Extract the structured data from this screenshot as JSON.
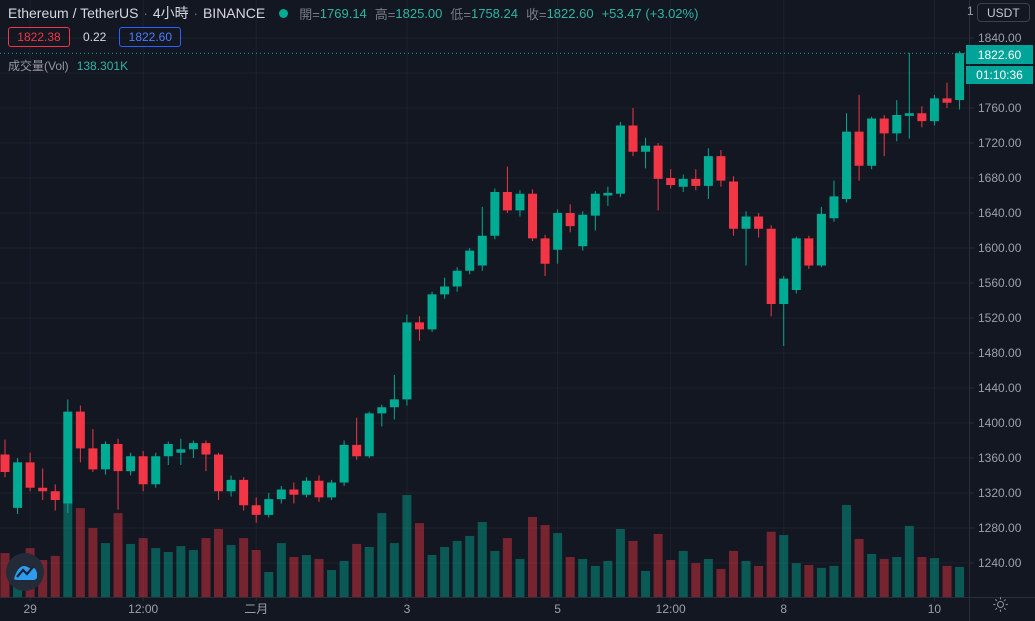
{
  "header": {
    "symbol": "Ethereum / TetherUS",
    "separator": "·",
    "interval": "4小時",
    "exchange": "BINANCE",
    "ohlc": {
      "open_label": "開=",
      "open": "1769.14",
      "high_label": "高=",
      "high": "1825.00",
      "low_label": "低=",
      "low": "1758.24",
      "close_label": "收=",
      "close": "1822.60",
      "change": "+53.47 (+3.02%)"
    },
    "bid": "1822.38",
    "spread": "0.22",
    "ask": "1822.60",
    "volume_label": "成交量(Vol)",
    "volume_value": "138.301K"
  },
  "price_scale": {
    "currency": "USDT",
    "clipped_top_label": "1",
    "current_price": "1822.60",
    "countdown": "01:10:36",
    "labels": [
      "1840.00",
      "1800.00",
      "1760.00",
      "1720.00",
      "1680.00",
      "1640.00",
      "1600.00",
      "1560.00",
      "1520.00",
      "1480.00",
      "1440.00",
      "1400.00",
      "1360.00",
      "1320.00",
      "1280.00",
      "1240.00"
    ]
  },
  "time_scale": {
    "labels": [
      {
        "index": 2,
        "text": "29"
      },
      {
        "index": 11,
        "text": "12:00"
      },
      {
        "index": 20,
        "text": "二月"
      },
      {
        "index": 32,
        "text": "3"
      },
      {
        "index": 44,
        "text": "5"
      },
      {
        "index": 53,
        "text": "12:00"
      },
      {
        "index": 62,
        "text": "8"
      },
      {
        "index": 74,
        "text": "10"
      }
    ]
  },
  "icons": {
    "status": "market-status-dot",
    "logo": "tradingview-logo",
    "settings": "sun-gear-icon"
  },
  "chart_data": {
    "type": "candlestick",
    "title": "Ethereum / TetherUS 4小時 BINANCE",
    "interval": "4h",
    "volume_unit": "K",
    "last_price": 1822.6,
    "price_axis": {
      "min": 1240,
      "max": 1840,
      "step": 40
    },
    "colors": {
      "bg": "#131722",
      "up": "#00ab94",
      "down": "#f23645",
      "vol_up": "rgba(0,171,148,0.45)",
      "vol_down": "rgba(242,54,69,0.45)",
      "accent_text": "#2cb5a4",
      "blue": "#2962ff",
      "axis_text": "#9aa0aa",
      "grid": "rgba(140,150,168,0.08)",
      "border": "#2a2e39",
      "price_line": "#00ab94",
      "label_bg": "#00a498"
    },
    "ohlcv": [
      [
        1364,
        1381,
        1338,
        1344,
        202
      ],
      [
        1303,
        1360,
        1296,
        1355,
        184
      ],
      [
        1355,
        1366,
        1322,
        1326,
        225
      ],
      [
        1326,
        1348,
        1312,
        1322,
        170
      ],
      [
        1322,
        1330,
        1300,
        1312,
        189
      ],
      [
        1308,
        1427,
        1297,
        1413,
        460
      ],
      [
        1413,
        1420,
        1355,
        1371,
        409
      ],
      [
        1371,
        1393,
        1344,
        1347,
        317
      ],
      [
        1347,
        1379,
        1341,
        1376,
        248
      ],
      [
        1376,
        1382,
        1301,
        1345,
        386
      ],
      [
        1345,
        1366,
        1340,
        1362,
        244
      ],
      [
        1362,
        1368,
        1322,
        1330,
        271
      ],
      [
        1330,
        1366,
        1326,
        1362,
        225
      ],
      [
        1362,
        1379,
        1352,
        1376,
        207
      ],
      [
        1366,
        1382,
        1352,
        1370,
        234
      ],
      [
        1370,
        1380,
        1360,
        1377,
        216
      ],
      [
        1377,
        1380,
        1345,
        1364,
        271
      ],
      [
        1364,
        1366,
        1312,
        1322,
        313
      ],
      [
        1322,
        1340,
        1316,
        1335,
        239
      ],
      [
        1335,
        1338,
        1300,
        1306,
        271
      ],
      [
        1306,
        1315,
        1286,
        1295,
        216
      ],
      [
        1295,
        1320,
        1292,
        1313,
        115
      ],
      [
        1313,
        1328,
        1308,
        1324,
        248
      ],
      [
        1324,
        1332,
        1308,
        1318,
        184
      ],
      [
        1318,
        1338,
        1315,
        1334,
        193
      ],
      [
        1334,
        1340,
        1310,
        1315,
        175
      ],
      [
        1315,
        1335,
        1312,
        1332,
        124
      ],
      [
        1332,
        1380,
        1328,
        1375,
        166
      ],
      [
        1375,
        1406,
        1358,
        1362,
        244
      ],
      [
        1362,
        1413,
        1360,
        1411,
        230
      ],
      [
        1411,
        1421,
        1396,
        1418,
        386
      ],
      [
        1418,
        1455,
        1404,
        1427,
        248
      ],
      [
        1427,
        1524,
        1420,
        1515,
        469
      ],
      [
        1515,
        1522,
        1494,
        1507,
        340
      ],
      [
        1507,
        1550,
        1504,
        1547,
        193
      ],
      [
        1547,
        1566,
        1542,
        1556,
        230
      ],
      [
        1556,
        1578,
        1550,
        1574,
        258
      ],
      [
        1574,
        1600,
        1570,
        1597,
        281
      ],
      [
        1580,
        1647,
        1574,
        1614,
        345
      ],
      [
        1614,
        1668,
        1610,
        1664,
        212
      ],
      [
        1664,
        1693,
        1640,
        1643,
        271
      ],
      [
        1643,
        1666,
        1636,
        1662,
        175
      ],
      [
        1662,
        1667,
        1608,
        1611,
        368
      ],
      [
        1611,
        1615,
        1568,
        1582,
        331
      ],
      [
        1598,
        1644,
        1582,
        1640,
        294
      ],
      [
        1640,
        1650,
        1618,
        1625,
        184
      ],
      [
        1602,
        1642,
        1597,
        1638,
        175
      ],
      [
        1637,
        1665,
        1620,
        1662,
        143
      ],
      [
        1660,
        1670,
        1648,
        1663,
        166
      ],
      [
        1662,
        1744,
        1658,
        1740,
        313
      ],
      [
        1740,
        1760,
        1705,
        1710,
        258
      ],
      [
        1710,
        1726,
        1691,
        1717,
        120
      ],
      [
        1717,
        1720,
        1643,
        1679,
        290
      ],
      [
        1680,
        1690,
        1668,
        1672,
        170
      ],
      [
        1670,
        1684,
        1664,
        1679,
        212
      ],
      [
        1679,
        1690,
        1666,
        1671,
        156
      ],
      [
        1671,
        1714,
        1656,
        1705,
        175
      ],
      [
        1705,
        1712,
        1670,
        1677,
        129
      ],
      [
        1676,
        1682,
        1614,
        1622,
        212
      ],
      [
        1622,
        1642,
        1580,
        1636,
        166
      ],
      [
        1636,
        1640,
        1612,
        1622,
        143
      ],
      [
        1622,
        1626,
        1522,
        1536,
        300
      ],
      [
        1536,
        1568,
        1488,
        1565,
        285
      ],
      [
        1552,
        1613,
        1548,
        1611,
        156
      ],
      [
        1611,
        1614,
        1576,
        1580,
        147
      ],
      [
        1580,
        1647,
        1578,
        1639,
        134
      ],
      [
        1634,
        1677,
        1630,
        1659,
        143
      ],
      [
        1656,
        1754,
        1652,
        1733,
        423
      ],
      [
        1733,
        1775,
        1677,
        1694,
        267
      ],
      [
        1694,
        1750,
        1690,
        1748,
        198
      ],
      [
        1748,
        1752,
        1705,
        1731,
        175
      ],
      [
        1731,
        1769,
        1722,
        1752,
        184
      ],
      [
        1751,
        1823,
        1725,
        1754,
        327
      ],
      [
        1754,
        1762,
        1738,
        1745,
        184
      ],
      [
        1745,
        1775,
        1740,
        1771,
        179
      ],
      [
        1771,
        1789,
        1760,
        1766,
        143
      ],
      [
        1769.14,
        1825,
        1758.24,
        1822.6,
        138.301
      ]
    ]
  }
}
